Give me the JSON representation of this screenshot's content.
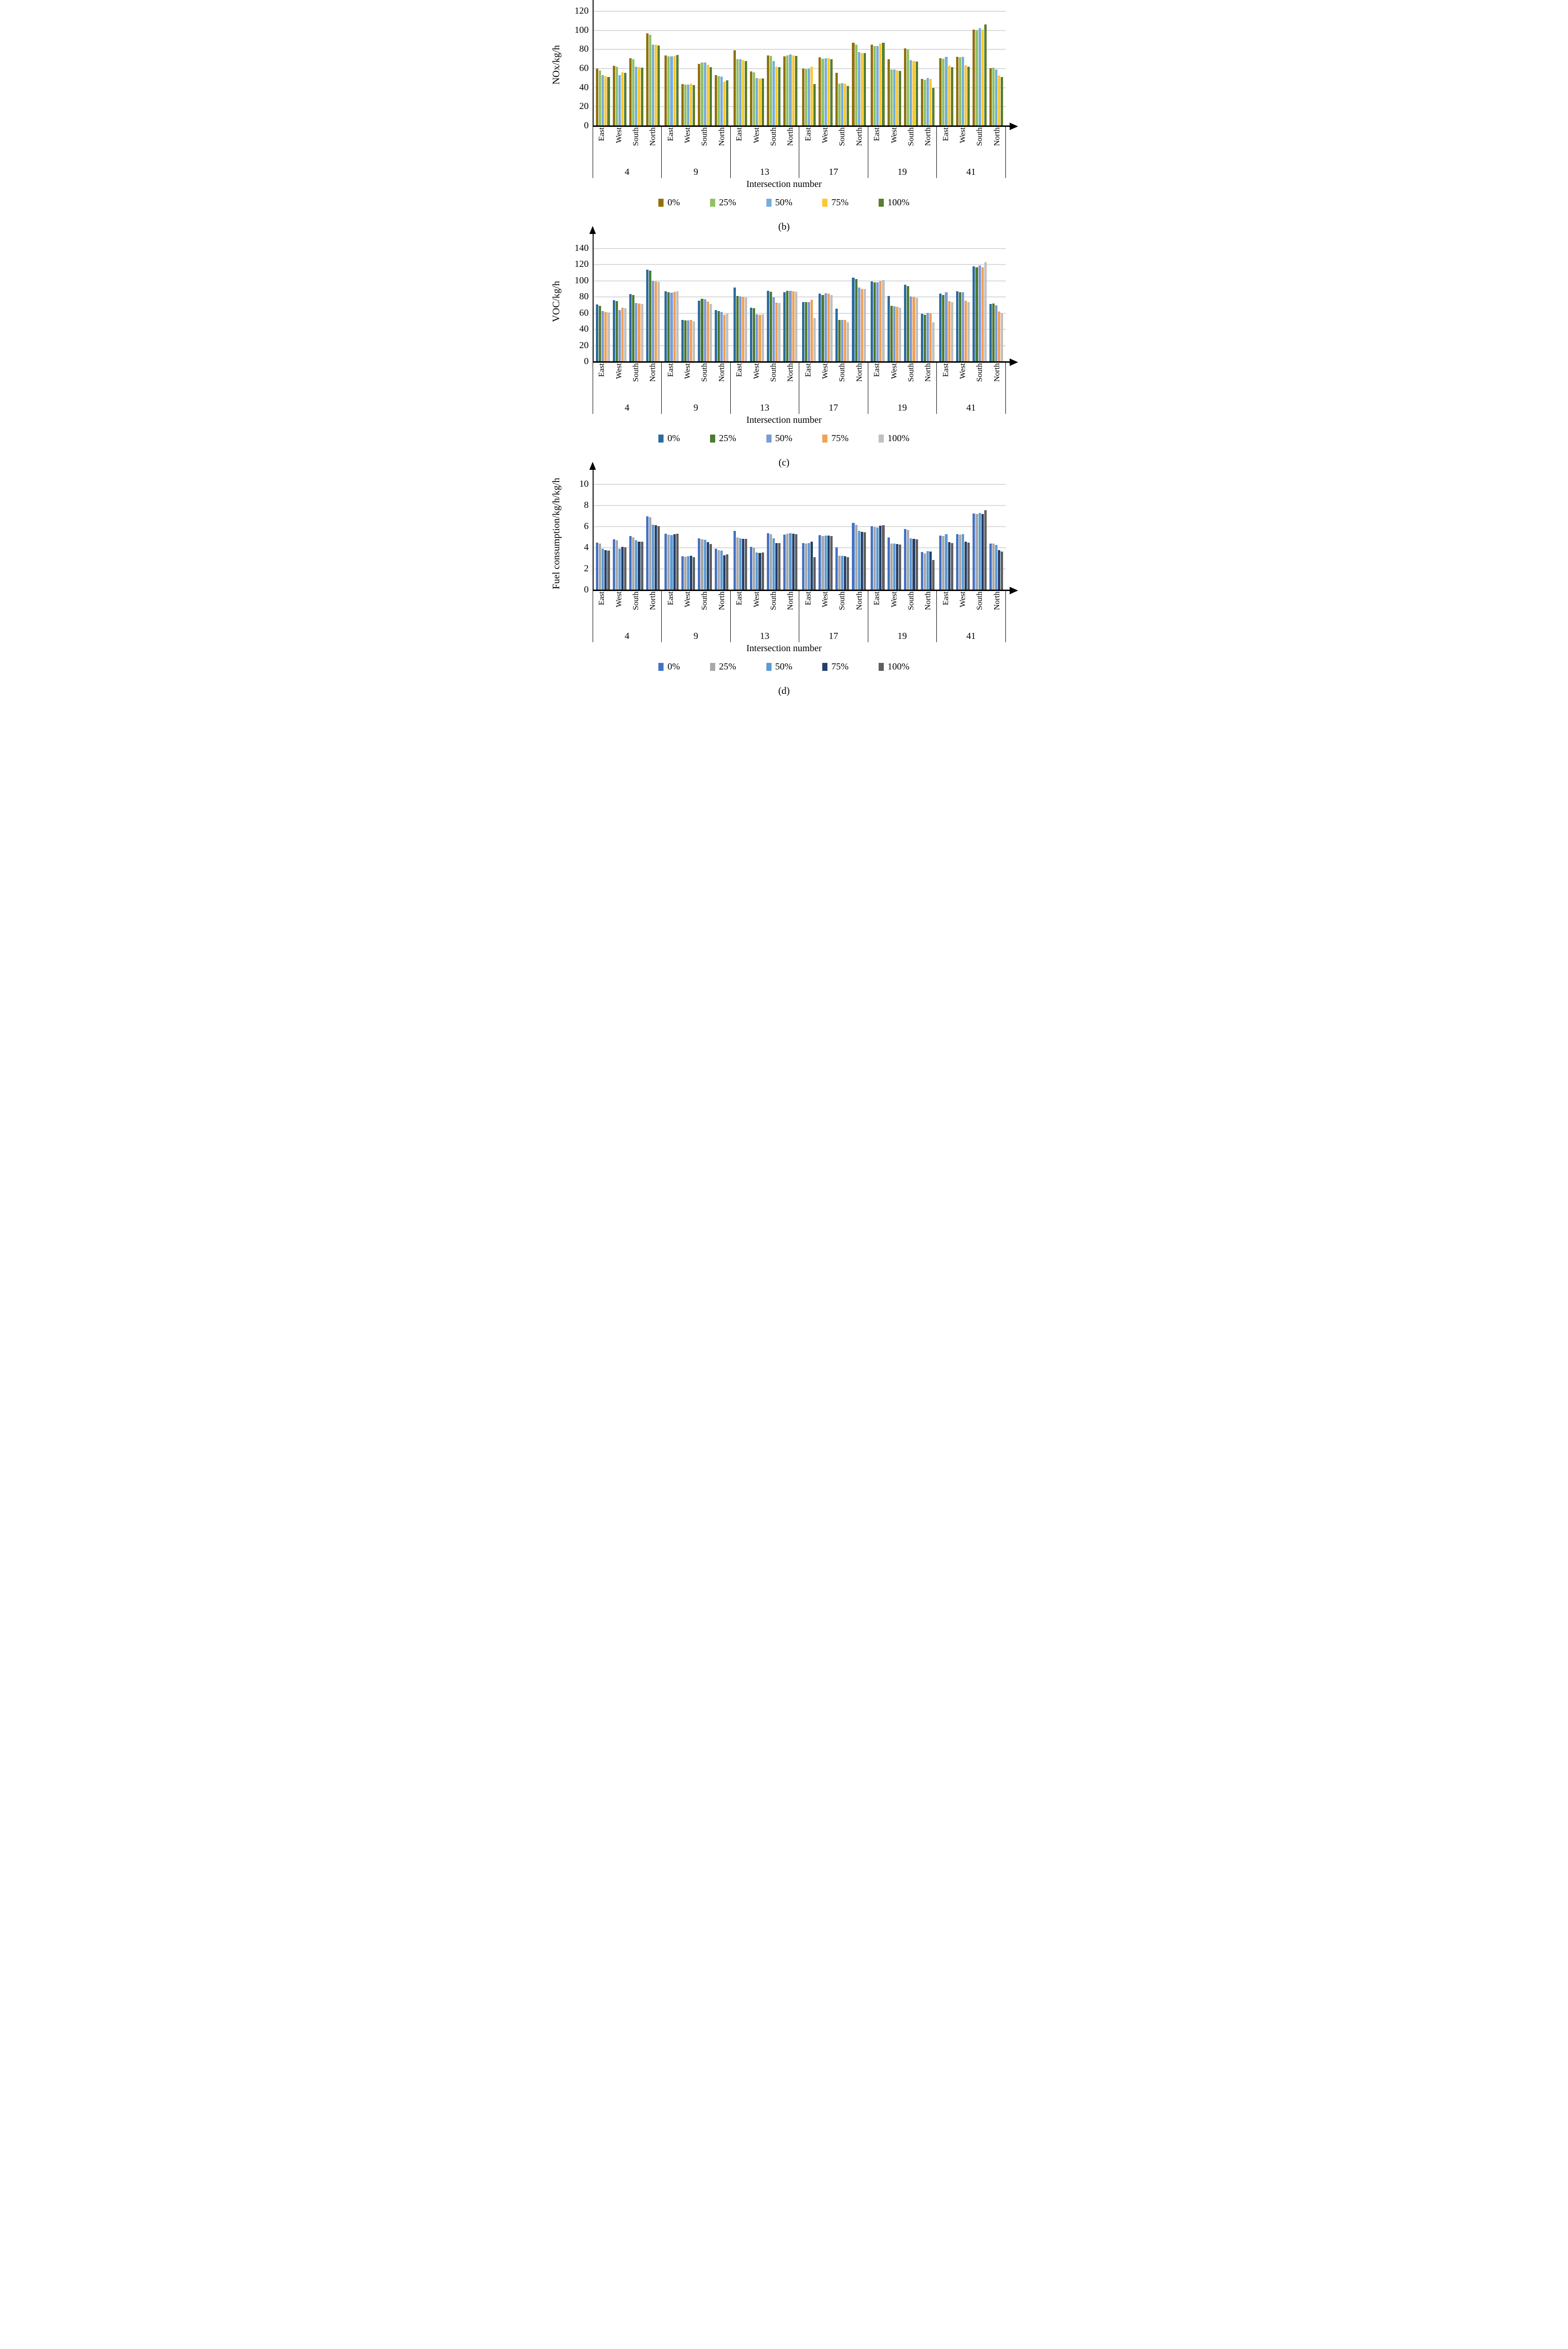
{
  "figure": {
    "axis_title": "Intersection number",
    "series_labels": [
      "0%",
      "25%",
      "50%",
      "75%",
      "100%"
    ],
    "directions": [
      "East",
      "West",
      "South",
      "North"
    ],
    "groups": [
      "4",
      "9",
      "13",
      "17",
      "19",
      "41"
    ],
    "values_order": "values[group][direction][series]"
  },
  "chart_data": [
    {
      "id": "b",
      "type": "bar",
      "caption": "(b)",
      "ylabel": "NOx/kg/h",
      "xlabel": "Intersection number",
      "ylim": [
        0,
        120
      ],
      "ytick_step": 20,
      "yticks": [
        0,
        20,
        40,
        60,
        80,
        100,
        120
      ],
      "grid": "horizontal",
      "legend_position": "bottom",
      "categories": [
        "4",
        "9",
        "13",
        "17",
        "19",
        "41"
      ],
      "directions": [
        "East",
        "West",
        "South",
        "North"
      ],
      "series_labels": [
        "0%",
        "25%",
        "50%",
        "75%",
        "100%"
      ],
      "colors": [
        "#92700c",
        "#8fc268",
        "#76aedb",
        "#fdc72f",
        "#567f31"
      ],
      "values": [
        [
          [
            60,
            58,
            53,
            52,
            51
          ],
          [
            63,
            62,
            53,
            56,
            55.5
          ],
          [
            71,
            70,
            62,
            61.5,
            61
          ],
          [
            97,
            95.5,
            85,
            85,
            84
          ]
        ],
        [
          [
            74,
            73,
            73,
            73.5,
            74.5
          ],
          [
            44,
            43.5,
            43.5,
            44.5,
            43
          ],
          [
            65,
            66.5,
            66.5,
            64,
            61.5
          ],
          [
            53,
            52,
            51.5,
            46,
            47.5
          ]
        ],
        [
          [
            79,
            70,
            70,
            69,
            68
          ],
          [
            57,
            56,
            50,
            49.5,
            49.5
          ],
          [
            74,
            73.5,
            68,
            62,
            61.5
          ],
          [
            73,
            74,
            75,
            74,
            73.5
          ]
        ],
        [
          [
            60,
            59.5,
            60,
            62,
            44
          ],
          [
            72,
            70.5,
            71,
            71,
            70
          ],
          [
            55.5,
            44.5,
            45,
            44.5,
            42
          ],
          [
            87,
            85,
            77,
            76,
            76
          ]
        ],
        [
          [
            85,
            83.5,
            83.5,
            86,
            87
          ],
          [
            70,
            59,
            59,
            58,
            57.5
          ],
          [
            81,
            80,
            69,
            68,
            67.5
          ],
          [
            49,
            48,
            50,
            49,
            40
          ]
        ],
        [
          [
            71,
            70.5,
            72.5,
            63,
            61.5
          ],
          [
            72.5,
            72,
            72.5,
            63.5,
            62
          ],
          [
            101,
            100.5,
            102.5,
            101,
            106
          ],
          [
            60.5,
            61,
            59,
            52.5,
            51
          ]
        ]
      ]
    },
    {
      "id": "c",
      "type": "bar",
      "caption": "(c)",
      "ylabel": "VOC/kg/h",
      "xlabel": "Intersection number",
      "ylim": [
        0,
        140
      ],
      "ytick_step": 20,
      "yticks": [
        0,
        20,
        40,
        60,
        80,
        100,
        120,
        140
      ],
      "grid": "horizontal",
      "legend_position": "bottom",
      "categories": [
        "4",
        "9",
        "13",
        "17",
        "19",
        "41"
      ],
      "directions": [
        "East",
        "West",
        "South",
        "North"
      ],
      "series_labels": [
        "0%",
        "25%",
        "50%",
        "75%",
        "100%"
      ],
      "colors": [
        "#2c6b9e",
        "#4e7a31",
        "#7b9bd7",
        "#f0a156",
        "#c0c0c0"
      ],
      "values": [
        [
          [
            71,
            69,
            63,
            61.5,
            61
          ],
          [
            76,
            75,
            64,
            67,
            66.5
          ],
          [
            83.5,
            82.5,
            72.5,
            72,
            71.5
          ],
          [
            114,
            112.5,
            100,
            99.5,
            98.5
          ]
        ],
        [
          [
            87,
            86,
            85.5,
            86.5,
            87
          ],
          [
            51.5,
            51,
            51,
            52,
            50
          ],
          [
            75.5,
            78,
            77,
            74.5,
            71.5
          ],
          [
            64,
            62.5,
            61.5,
            58,
            60
          ]
        ],
        [
          [
            92,
            81.5,
            80.5,
            80,
            79.5
          ],
          [
            67,
            66,
            58.5,
            58,
            58.5
          ],
          [
            87.5,
            86.5,
            79.5,
            73,
            72.5
          ],
          [
            86,
            87.5,
            88,
            87,
            86.5
          ]
        ],
        [
          [
            74,
            73.5,
            74,
            76.5,
            54
          ],
          [
            84.5,
            82.5,
            85,
            84,
            82.5
          ],
          [
            65.5,
            52,
            52,
            51.5,
            49
          ],
          [
            104,
            102,
            92,
            90,
            90
          ]
        ],
        [
          [
            99.5,
            98,
            98,
            100,
            101
          ],
          [
            81.5,
            69,
            68.5,
            68,
            67
          ],
          [
            95.5,
            93.5,
            80.5,
            80,
            79
          ],
          [
            59,
            58,
            60.5,
            60,
            49
          ]
        ],
        [
          [
            84.5,
            82.5,
            86,
            75,
            73.5
          ],
          [
            87,
            86,
            86,
            75.5,
            74
          ],
          [
            118,
            116.5,
            119,
            117,
            123
          ],
          [
            71.5,
            72,
            69.5,
            62,
            60.5
          ]
        ]
      ]
    },
    {
      "id": "d",
      "type": "bar",
      "caption": "(d)",
      "ylabel": "Fuel consumption/kg/h/kg/h",
      "xlabel": "Intersection number",
      "ylim": [
        0,
        10
      ],
      "ytick_step": 2,
      "yticks": [
        0,
        2,
        4,
        6,
        8,
        10
      ],
      "grid": "horizontal",
      "legend_position": "bottom",
      "categories": [
        "4",
        "9",
        "13",
        "17",
        "19",
        "41"
      ],
      "directions": [
        "East",
        "West",
        "South",
        "North"
      ],
      "series_labels": [
        "0%",
        "25%",
        "50%",
        "75%",
        "100%"
      ],
      "colors": [
        "#4472c4",
        "#a8a8a8",
        "#5b9bd5",
        "#24406b",
        "#5f5f5f"
      ],
      "values": [
        [
          [
            4.5,
            4.4,
            3.9,
            3.8,
            3.75
          ],
          [
            4.8,
            4.7,
            3.9,
            4.1,
            4.05
          ],
          [
            5.1,
            5.0,
            4.7,
            4.6,
            4.6
          ],
          [
            7.0,
            6.9,
            6.2,
            6.15,
            6.05
          ]
        ],
        [
          [
            5.35,
            5.25,
            5.2,
            5.3,
            5.35
          ],
          [
            3.2,
            3.15,
            3.2,
            3.25,
            3.1
          ],
          [
            4.9,
            4.8,
            4.75,
            4.55,
            4.35
          ],
          [
            3.9,
            3.8,
            3.75,
            3.3,
            3.4
          ]
        ],
        [
          [
            5.6,
            5.0,
            4.9,
            4.85,
            4.85
          ],
          [
            4.1,
            4.0,
            3.55,
            3.5,
            3.55
          ],
          [
            5.4,
            5.3,
            4.9,
            4.45,
            4.45
          ],
          [
            5.25,
            5.35,
            5.4,
            5.35,
            5.3
          ]
        ],
        [
          [
            4.45,
            4.4,
            4.45,
            4.6,
            3.1
          ],
          [
            5.2,
            5.1,
            5.15,
            5.15,
            5.1
          ],
          [
            4.05,
            3.25,
            3.25,
            3.2,
            3.1
          ],
          [
            6.35,
            6.2,
            5.6,
            5.5,
            5.45
          ]
        ],
        [
          [
            6.05,
            5.95,
            5.9,
            6.1,
            6.15
          ],
          [
            5.0,
            4.4,
            4.4,
            4.35,
            4.3
          ],
          [
            5.8,
            5.7,
            4.9,
            4.85,
            4.8
          ],
          [
            3.6,
            3.45,
            3.7,
            3.65,
            2.85
          ]
        ],
        [
          [
            5.15,
            5.1,
            5.3,
            4.55,
            4.45
          ],
          [
            5.3,
            5.25,
            5.3,
            4.6,
            4.5
          ],
          [
            7.25,
            7.2,
            7.3,
            7.2,
            7.55
          ],
          [
            4.4,
            4.4,
            4.25,
            3.8,
            3.65
          ]
        ]
      ]
    }
  ]
}
